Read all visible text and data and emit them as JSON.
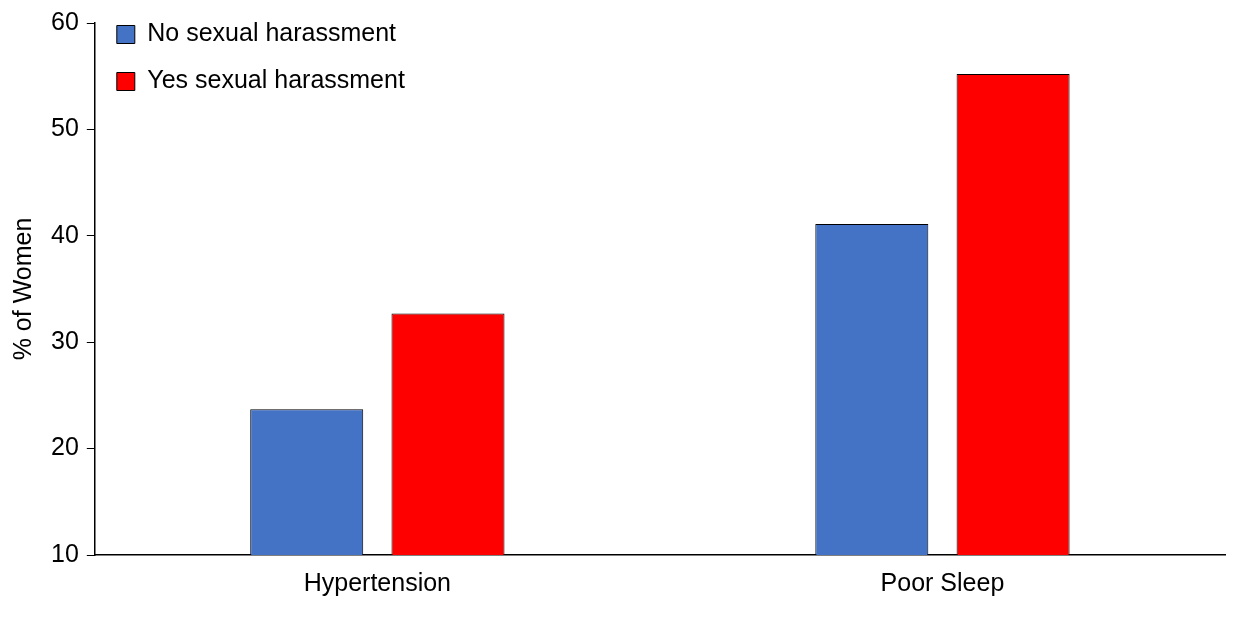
{
  "chart_data": {
    "type": "bar",
    "ylabel": "% of Women",
    "categories": [
      "Hypertension",
      "Poor Sleep"
    ],
    "series": [
      {
        "name": "No sexual harassment",
        "color": "#4472c4",
        "values": [
          23.7,
          41.1
        ]
      },
      {
        "name": "Yes sexual harassment",
        "color": "#ff0000",
        "values": [
          32.7,
          55.2
        ]
      }
    ],
    "ylim": [
      10,
      60
    ],
    "yticks": [
      10,
      20,
      30,
      40,
      50,
      60
    ],
    "grid": false,
    "legend": "top left"
  }
}
